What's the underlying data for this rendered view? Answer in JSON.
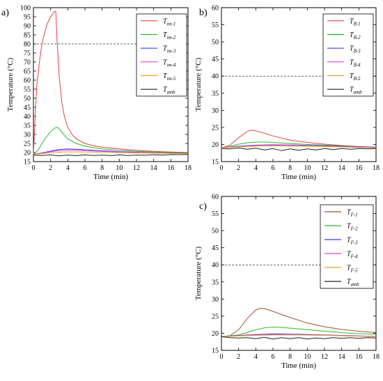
{
  "chart_data": [
    {
      "panel_label": "a)",
      "type": "line",
      "xlabel": "Time (min)",
      "ylabel": "Temperature (°C)",
      "xlim": [
        0,
        18
      ],
      "ylim": [
        15,
        100
      ],
      "xticks": [
        0,
        2,
        4,
        6,
        8,
        10,
        12,
        14,
        16,
        18
      ],
      "yticks": [
        15,
        20,
        25,
        30,
        35,
        40,
        45,
        50,
        55,
        60,
        65,
        70,
        75,
        80,
        85,
        90,
        95,
        100
      ],
      "reference_line": 80,
      "legend_position": "top-right",
      "series": [
        {
          "name": "T",
          "sub": "im-1",
          "color": "#e8413c",
          "points": [
            [
              0,
              19
            ],
            [
              0.2,
              40
            ],
            [
              0.4,
              57
            ],
            [
              0.6,
              66
            ],
            [
              0.8,
              74
            ],
            [
              1.0,
              80
            ],
            [
              1.3,
              86
            ],
            [
              1.6,
              91
            ],
            [
              2.0,
              95
            ],
            [
              2.5,
              98
            ],
            [
              2.6,
              98
            ],
            [
              2.75,
              82
            ],
            [
              3.0,
              62
            ],
            [
              3.3,
              48
            ],
            [
              3.6,
              40
            ],
            [
              4.0,
              34
            ],
            [
              4.5,
              30
            ],
            [
              5.0,
              27.5
            ],
            [
              6,
              25
            ],
            [
              7,
              23.8
            ],
            [
              8,
              23
            ],
            [
              10,
              22
            ],
            [
              12,
              21.2
            ],
            [
              14,
              20.7
            ],
            [
              16,
              20.3
            ],
            [
              18,
              20
            ]
          ]
        },
        {
          "name": "T",
          "sub": "im-2",
          "color": "#2bb82b",
          "points": [
            [
              0,
              19
            ],
            [
              0.5,
              21
            ],
            [
              1.0,
              25
            ],
            [
              1.5,
              28.5
            ],
            [
              2.0,
              31.5
            ],
            [
              2.5,
              33.5
            ],
            [
              2.8,
              34
            ],
            [
              3.2,
              32
            ],
            [
              3.6,
              29.5
            ],
            [
              4.0,
              27.5
            ],
            [
              5,
              25
            ],
            [
              6,
              23.5
            ],
            [
              8,
              22
            ],
            [
              10,
              21.2
            ],
            [
              12,
              20.7
            ],
            [
              14,
              20.3
            ],
            [
              16,
              20
            ],
            [
              18,
              19.8
            ]
          ]
        },
        {
          "name": "T",
          "sub": "im-3",
          "color": "#3a3aff",
          "points": [
            [
              0,
              19
            ],
            [
              1,
              19.8
            ],
            [
              2,
              20.8
            ],
            [
              3,
              21.6
            ],
            [
              3.8,
              22
            ],
            [
              5,
              21.8
            ],
            [
              7,
              21.2
            ],
            [
              10,
              20.5
            ],
            [
              14,
              19.9
            ],
            [
              18,
              19.5
            ]
          ]
        },
        {
          "name": "T",
          "sub": "im-4",
          "color": "#e040e0",
          "points": [
            [
              0,
              19
            ],
            [
              1,
              19.6
            ],
            [
              2,
              20.5
            ],
            [
              3,
              21.1
            ],
            [
              4,
              21.4
            ],
            [
              5,
              21.3
            ],
            [
              7,
              20.9
            ],
            [
              10,
              20.3
            ],
            [
              14,
              19.8
            ],
            [
              18,
              19.4
            ]
          ]
        },
        {
          "name": "T",
          "sub": "im-5",
          "color": "#f0a020",
          "points": [
            [
              0,
              19
            ],
            [
              1,
              19.4
            ],
            [
              2,
              19.9
            ],
            [
              3,
              20.2
            ],
            [
              4,
              20.4
            ],
            [
              6,
              20.3
            ],
            [
              9,
              20
            ],
            [
              13,
              19.7
            ],
            [
              18,
              19.4
            ]
          ]
        },
        {
          "name": "T",
          "sub": "amb",
          "color": "#222222",
          "points": [
            [
              0,
              18.6
            ],
            [
              1,
              18.4
            ],
            [
              2,
              18.7
            ],
            [
              3,
              18.2
            ],
            [
              4,
              18.6
            ],
            [
              5,
              18.3
            ],
            [
              6,
              18.7
            ],
            [
              7,
              18.4
            ],
            [
              8,
              18.6
            ],
            [
              9,
              18.3
            ],
            [
              10,
              18.7
            ],
            [
              11,
              18.4
            ],
            [
              12,
              18.6
            ],
            [
              13,
              18.5
            ],
            [
              14,
              18.8
            ],
            [
              15,
              18.6
            ],
            [
              16,
              18.9
            ],
            [
              17,
              18.8
            ],
            [
              18,
              19
            ]
          ]
        }
      ]
    },
    {
      "panel_label": "b)",
      "type": "line",
      "xlabel": "Time (min)",
      "ylabel": "Temperature (°C)",
      "xlim": [
        0,
        18
      ],
      "ylim": [
        15,
        60
      ],
      "xticks": [
        0,
        2,
        4,
        6,
        8,
        10,
        12,
        14,
        16,
        18
      ],
      "yticks": [
        15,
        20,
        25,
        30,
        35,
        40,
        45,
        50,
        55,
        60
      ],
      "reference_line": 40,
      "legend_position": "top-right",
      "series": [
        {
          "name": "T",
          "sub": "B-1",
          "color": "#e8413c",
          "points": [
            [
              0,
              19
            ],
            [
              1,
              19.8
            ],
            [
              2,
              22
            ],
            [
              3,
              23.8
            ],
            [
              3.5,
              24.2
            ],
            [
              4,
              24
            ],
            [
              5,
              23.3
            ],
            [
              6,
              22.5
            ],
            [
              8,
              21.3
            ],
            [
              10,
              20.6
            ],
            [
              12,
              20.1
            ],
            [
              14,
              19.7
            ],
            [
              16,
              19.4
            ],
            [
              18,
              19.1
            ]
          ]
        },
        {
          "name": "T",
          "sub": "B-2",
          "color": "#2bb82b",
          "points": [
            [
              0,
              19
            ],
            [
              1,
              19.4
            ],
            [
              2,
              20.1
            ],
            [
              3,
              20.5
            ],
            [
              4,
              20.7
            ],
            [
              5,
              20.7
            ],
            [
              6,
              20.6
            ],
            [
              8,
              20.3
            ],
            [
              10,
              20
            ],
            [
              12,
              19.8
            ],
            [
              14,
              19.6
            ],
            [
              16,
              19.4
            ],
            [
              18,
              19.2
            ]
          ]
        },
        {
          "name": "T",
          "sub": "B-3",
          "color": "#3a3aff",
          "points": [
            [
              0,
              19
            ],
            [
              2,
              19.5
            ],
            [
              4,
              19.8
            ],
            [
              6,
              19.9
            ],
            [
              9,
              19.8
            ],
            [
              12,
              19.6
            ],
            [
              15,
              19.4
            ],
            [
              18,
              19.2
            ]
          ]
        },
        {
          "name": "T",
          "sub": "B-4",
          "color": "#e040e0",
          "points": [
            [
              0,
              19
            ],
            [
              2,
              19.4
            ],
            [
              4,
              19.7
            ],
            [
              6,
              19.8
            ],
            [
              9,
              19.7
            ],
            [
              12,
              19.5
            ],
            [
              15,
              19.3
            ],
            [
              18,
              19.1
            ]
          ]
        },
        {
          "name": "T",
          "sub": "B-5",
          "color": "#f0a020",
          "points": [
            [
              0,
              19
            ],
            [
              2,
              19.3
            ],
            [
              4,
              19.5
            ],
            [
              6,
              19.6
            ],
            [
              9,
              19.5
            ],
            [
              12,
              19.4
            ],
            [
              15,
              19.2
            ],
            [
              18,
              19
            ]
          ]
        },
        {
          "name": "T",
          "sub": "amb",
          "color": "#222222",
          "points": [
            [
              0,
              18.8
            ],
            [
              1,
              18.7
            ],
            [
              2,
              19
            ],
            [
              3,
              18.6
            ],
            [
              4,
              18.9
            ],
            [
              5,
              18.4
            ],
            [
              6,
              18.8
            ],
            [
              7,
              18.2
            ],
            [
              8,
              18.7
            ],
            [
              9,
              18.3
            ],
            [
              10,
              18.7
            ],
            [
              11,
              18.4
            ],
            [
              12,
              18.8
            ],
            [
              13,
              18.5
            ],
            [
              14,
              18.8
            ],
            [
              15,
              18.6
            ],
            [
              16,
              18.8
            ],
            [
              17,
              18.7
            ],
            [
              18,
              18.8
            ]
          ]
        }
      ]
    },
    {
      "panel_label": "c)",
      "type": "line",
      "xlabel": "Time (min)",
      "ylabel": "Temperature (°C)",
      "xlim": [
        0,
        18
      ],
      "ylim": [
        15,
        60
      ],
      "xticks": [
        0,
        2,
        4,
        6,
        8,
        10,
        12,
        14,
        16,
        18
      ],
      "yticks": [
        15,
        20,
        25,
        30,
        35,
        40,
        45,
        50,
        55,
        60
      ],
      "reference_line": 40,
      "legend_position": "top-right",
      "series": [
        {
          "name": "T",
          "sub": "F-1",
          "color": "#a0522d",
          "points": [
            [
              0,
              19
            ],
            [
              1,
              19.3
            ],
            [
              2,
              21
            ],
            [
              3,
              24.3
            ],
            [
              4,
              26.8
            ],
            [
              4.5,
              27.3
            ],
            [
              5,
              27.2
            ],
            [
              6,
              26.4
            ],
            [
              8,
              24.6
            ],
            [
              10,
              23
            ],
            [
              12,
              21.9
            ],
            [
              14,
              21.1
            ],
            [
              16,
              20.6
            ],
            [
              18,
              20.2
            ]
          ]
        },
        {
          "name": "T",
          "sub": "F-2",
          "color": "#2bb82b",
          "points": [
            [
              0,
              19
            ],
            [
              2,
              19.5
            ],
            [
              4,
              21
            ],
            [
              5,
              21.6
            ],
            [
              6,
              21.8
            ],
            [
              7,
              21.7
            ],
            [
              9,
              21.3
            ],
            [
              11,
              20.8
            ],
            [
              13,
              20.4
            ],
            [
              15,
              20
            ],
            [
              18,
              19.7
            ]
          ]
        },
        {
          "name": "T",
          "sub": "F-3",
          "color": "#3a3aff",
          "points": [
            [
              0,
              19
            ],
            [
              3,
              19.5
            ],
            [
              6,
              19.8
            ],
            [
              9,
              19.7
            ],
            [
              12,
              19.5
            ],
            [
              15,
              19.3
            ],
            [
              18,
              19.1
            ]
          ]
        },
        {
          "name": "T",
          "sub": "F-4",
          "color": "#e040e0",
          "points": [
            [
              0,
              19
            ],
            [
              3,
              19.4
            ],
            [
              6,
              19.6
            ],
            [
              9,
              19.5
            ],
            [
              12,
              19.4
            ],
            [
              15,
              19.2
            ],
            [
              18,
              19
            ]
          ]
        },
        {
          "name": "T",
          "sub": "F-5",
          "color": "#f0a020",
          "points": [
            [
              0,
              19
            ],
            [
              3,
              19.3
            ],
            [
              6,
              19.5
            ],
            [
              9,
              19.5
            ],
            [
              12,
              19.4
            ],
            [
              15,
              19.2
            ],
            [
              18,
              19.1
            ]
          ]
        },
        {
          "name": "T",
          "sub": "amb",
          "color": "#222222",
          "points": [
            [
              0,
              19
            ],
            [
              1,
              18.7
            ],
            [
              2,
              18.6
            ],
            [
              3,
              18.7
            ],
            [
              4,
              18.4
            ],
            [
              5,
              18.8
            ],
            [
              6,
              18.3
            ],
            [
              7,
              18.7
            ],
            [
              8,
              18.4
            ],
            [
              9,
              18.7
            ],
            [
              10,
              18.3
            ],
            [
              11,
              18.6
            ],
            [
              12,
              18.4
            ],
            [
              13,
              18.7
            ],
            [
              14,
              18.5
            ],
            [
              15,
              18.7
            ],
            [
              16,
              18.5
            ],
            [
              17,
              18.7
            ],
            [
              18,
              18.6
            ]
          ]
        }
      ]
    }
  ]
}
